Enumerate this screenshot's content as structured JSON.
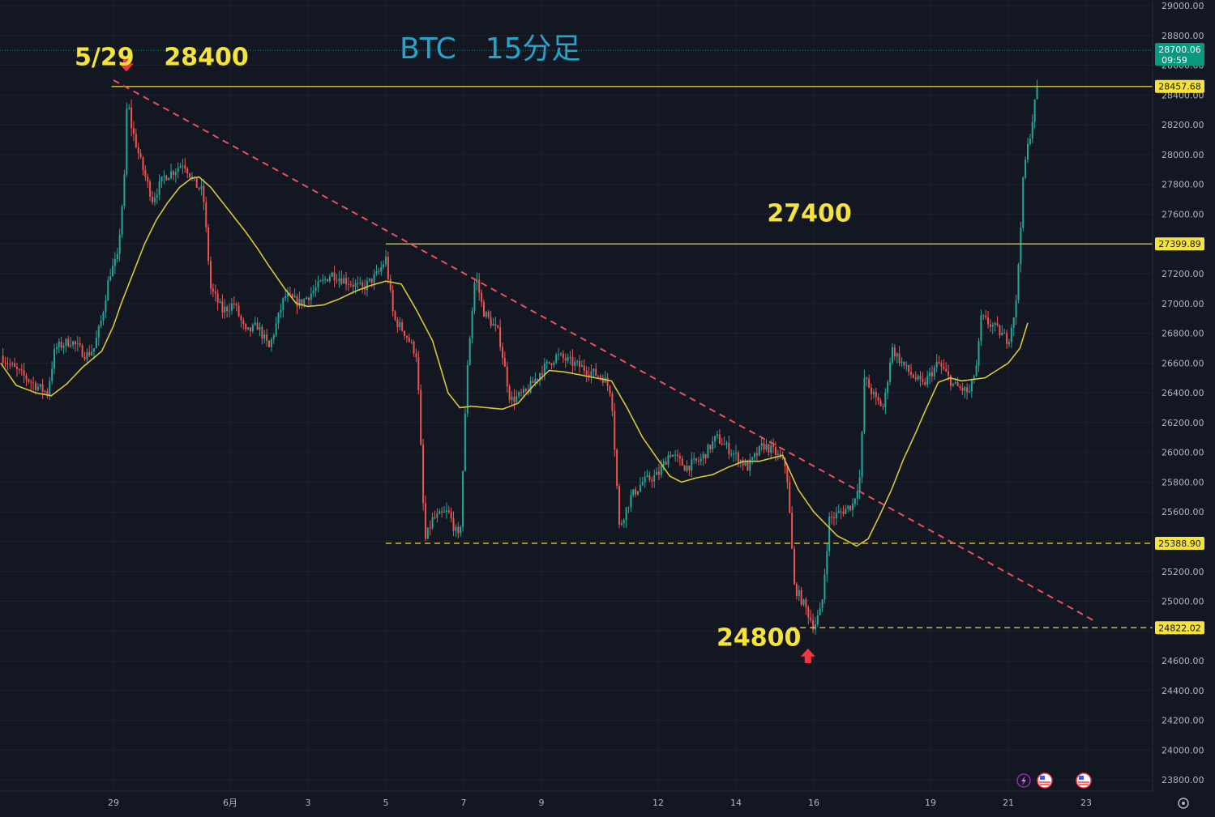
{
  "chart_data": {
    "type": "candlestick",
    "title": "BTC　15分足",
    "y_ticks": [
      23800,
      24000,
      24200,
      24400,
      24600,
      24800,
      25000,
      25200,
      25400,
      25600,
      25800,
      26000,
      26200,
      26400,
      26600,
      26800,
      27000,
      27200,
      27400,
      27600,
      27800,
      28000,
      28200,
      28400,
      28600,
      28800,
      29000
    ],
    "ylim": [
      23700,
      29000
    ],
    "x_labels": [
      {
        "label": "29",
        "day": 0
      },
      {
        "label": "6月",
        "day": 3
      },
      {
        "label": "3",
        "day": 5
      },
      {
        "label": "5",
        "day": 7
      },
      {
        "label": "7",
        "day": 9
      },
      {
        "label": "9",
        "day": 11
      },
      {
        "label": "12",
        "day": 14
      },
      {
        "label": "14",
        "day": 16
      },
      {
        "label": "16",
        "day": 18
      },
      {
        "label": "19",
        "day": 21
      },
      {
        "label": "21",
        "day": 23
      },
      {
        "label": "23",
        "day": 25
      }
    ],
    "price_path": [
      [
        -2.9,
        26650
      ],
      [
        -2.5,
        26550
      ],
      [
        -2.0,
        26450
      ],
      [
        -1.7,
        26400
      ],
      [
        -1.5,
        26700
      ],
      [
        -1.1,
        26750
      ],
      [
        -0.7,
        26650
      ],
      [
        -0.5,
        26700
      ],
      [
        -0.3,
        26900
      ],
      [
        -0.1,
        27200
      ],
      [
        0.1,
        27300
      ],
      [
        0.3,
        27900
      ],
      [
        0.35,
        28400
      ],
      [
        0.45,
        28200
      ],
      [
        0.7,
        27950
      ],
      [
        1.0,
        27700
      ],
      [
        1.3,
        27850
      ],
      [
        1.6,
        27900
      ],
      [
        1.8,
        27950
      ],
      [
        2.1,
        27800
      ],
      [
        2.3,
        27750
      ],
      [
        2.5,
        27100
      ],
      [
        2.8,
        26950
      ],
      [
        3.1,
        27000
      ],
      [
        3.4,
        26800
      ],
      [
        3.7,
        26850
      ],
      [
        4.0,
        26700
      ],
      [
        4.4,
        27050
      ],
      [
        4.8,
        27000
      ],
      [
        5.2,
        27100
      ],
      [
        5.6,
        27200
      ],
      [
        6.0,
        27150
      ],
      [
        6.4,
        27100
      ],
      [
        6.8,
        27200
      ],
      [
        7.0,
        27300
      ],
      [
        7.2,
        26900
      ],
      [
        7.5,
        26800
      ],
      [
        7.8,
        26650
      ],
      [
        8.0,
        25400
      ],
      [
        8.2,
        25550
      ],
      [
        8.6,
        25600
      ],
      [
        8.9,
        25400
      ],
      [
        9.1,
        26600
      ],
      [
        9.3,
        27200
      ],
      [
        9.5,
        26950
      ],
      [
        9.9,
        26800
      ],
      [
        10.2,
        26350
      ],
      [
        10.6,
        26400
      ],
      [
        11.0,
        26550
      ],
      [
        11.4,
        26650
      ],
      [
        11.8,
        26600
      ],
      [
        12.2,
        26550
      ],
      [
        12.6,
        26500
      ],
      [
        12.8,
        26400
      ],
      [
        13.0,
        25500
      ],
      [
        13.3,
        25700
      ],
      [
        13.6,
        25800
      ],
      [
        14.0,
        25850
      ],
      [
        14.3,
        26000
      ],
      [
        14.7,
        25900
      ],
      [
        15.1,
        25950
      ],
      [
        15.5,
        26100
      ],
      [
        15.9,
        26000
      ],
      [
        16.3,
        25900
      ],
      [
        16.7,
        26050
      ],
      [
        17.0,
        26000
      ],
      [
        17.3,
        25900
      ],
      [
        17.5,
        25100
      ],
      [
        17.8,
        24950
      ],
      [
        18.0,
        24830
      ],
      [
        18.2,
        24950
      ],
      [
        18.4,
        25550
      ],
      [
        18.7,
        25600
      ],
      [
        19.0,
        25650
      ],
      [
        19.2,
        25850
      ],
      [
        19.3,
        26500
      ],
      [
        19.6,
        26350
      ],
      [
        19.8,
        26300
      ],
      [
        20.0,
        26700
      ],
      [
        20.4,
        26550
      ],
      [
        20.8,
        26450
      ],
      [
        21.2,
        26600
      ],
      [
        21.6,
        26450
      ],
      [
        22.0,
        26400
      ],
      [
        22.2,
        26600
      ],
      [
        22.3,
        26900
      ],
      [
        22.6,
        26850
      ],
      [
        23.0,
        26750
      ],
      [
        23.2,
        27000
      ],
      [
        23.4,
        27900
      ],
      [
        23.6,
        28200
      ],
      [
        23.75,
        28470
      ]
    ],
    "ma_path": [
      [
        -2.9,
        26600
      ],
      [
        -2.5,
        26450
      ],
      [
        -2.0,
        26400
      ],
      [
        -1.6,
        26380
      ],
      [
        -1.2,
        26460
      ],
      [
        -0.8,
        26570
      ],
      [
        -0.3,
        26680
      ],
      [
        0.0,
        26850
      ],
      [
        0.2,
        27000
      ],
      [
        0.5,
        27200
      ],
      [
        0.8,
        27400
      ],
      [
        1.1,
        27560
      ],
      [
        1.4,
        27680
      ],
      [
        1.7,
        27780
      ],
      [
        2.0,
        27840
      ],
      [
        2.2,
        27850
      ],
      [
        2.5,
        27780
      ],
      [
        2.8,
        27680
      ],
      [
        3.1,
        27580
      ],
      [
        3.4,
        27480
      ],
      [
        3.7,
        27370
      ],
      [
        4.0,
        27250
      ],
      [
        4.4,
        27100
      ],
      [
        4.7,
        27000
      ],
      [
        5.0,
        26980
      ],
      [
        5.4,
        26990
      ],
      [
        5.8,
        27030
      ],
      [
        6.2,
        27080
      ],
      [
        6.6,
        27120
      ],
      [
        7.0,
        27150
      ],
      [
        7.4,
        27130
      ],
      [
        7.8,
        26950
      ],
      [
        8.2,
        26750
      ],
      [
        8.6,
        26400
      ],
      [
        8.9,
        26300
      ],
      [
        9.2,
        26310
      ],
      [
        9.6,
        26300
      ],
      [
        10.0,
        26290
      ],
      [
        10.4,
        26330
      ],
      [
        10.8,
        26450
      ],
      [
        11.2,
        26550
      ],
      [
        11.6,
        26540
      ],
      [
        12.0,
        26520
      ],
      [
        12.4,
        26500
      ],
      [
        12.8,
        26480
      ],
      [
        13.2,
        26300
      ],
      [
        13.6,
        26100
      ],
      [
        14.0,
        25950
      ],
      [
        14.3,
        25840
      ],
      [
        14.6,
        25800
      ],
      [
        15.0,
        25830
      ],
      [
        15.4,
        25850
      ],
      [
        15.8,
        25900
      ],
      [
        16.2,
        25940
      ],
      [
        16.6,
        25940
      ],
      [
        16.9,
        25960
      ],
      [
        17.2,
        25980
      ],
      [
        17.6,
        25750
      ],
      [
        18.0,
        25600
      ],
      [
        18.3,
        25520
      ],
      [
        18.6,
        25440
      ],
      [
        18.9,
        25400
      ],
      [
        19.1,
        25370
      ],
      [
        19.4,
        25420
      ],
      [
        19.7,
        25580
      ],
      [
        20.0,
        25750
      ],
      [
        20.3,
        25950
      ],
      [
        20.6,
        26120
      ],
      [
        20.9,
        26300
      ],
      [
        21.2,
        26470
      ],
      [
        21.5,
        26500
      ],
      [
        21.8,
        26480
      ],
      [
        22.1,
        26490
      ],
      [
        22.4,
        26500
      ],
      [
        22.7,
        26550
      ],
      [
        23.0,
        26600
      ],
      [
        23.3,
        26700
      ],
      [
        23.5,
        26870
      ]
    ],
    "horizontal_levels": [
      {
        "value": 28457.68,
        "tag": "28457.68",
        "style": "solid",
        "from_day": -0.05
      },
      {
        "value": 27399.89,
        "tag": "27399.89",
        "style": "solid",
        "from_day": 7.0
      },
      {
        "value": 25388.9,
        "tag": "25388.90",
        "style": "dashed",
        "from_day": 7.0
      },
      {
        "value": 24822.02,
        "tag": "24822.02",
        "style": "dashed",
        "from_day": 17.4
      }
    ],
    "trendline": {
      "from": [
        0.0,
        28500
      ],
      "to": [
        25.2,
        24870
      ]
    },
    "current_price": {
      "value": 28700.06,
      "tag": "28700.06",
      "countdown": "09:59"
    },
    "annotations": [
      {
        "text": "5/29",
        "day": -1.0,
        "price": 28600,
        "color": "#f5e33c"
      },
      {
        "text": "28400",
        "day": 1.3,
        "price": 28600,
        "color": "#f5e33c"
      },
      {
        "text": "27400",
        "day": 16.8,
        "price": 27550,
        "color": "#f5e33c"
      },
      {
        "text": "24800",
        "day": 15.5,
        "price": 24700,
        "color": "#f5e33c"
      }
    ],
    "arrows": [
      {
        "direction": "down",
        "day": 0.33,
        "price": 28590,
        "color": "#f23645"
      },
      {
        "direction": "up",
        "day": 17.85,
        "price": 24650,
        "color": "#f23645"
      }
    ],
    "colors": {
      "up": "#26a69a",
      "down": "#ef5350",
      "ma": "#d8c63a",
      "level": "#c9b83a",
      "trend": "#e9505c",
      "current": "#089981",
      "level_tag": "#f5e33c"
    }
  }
}
